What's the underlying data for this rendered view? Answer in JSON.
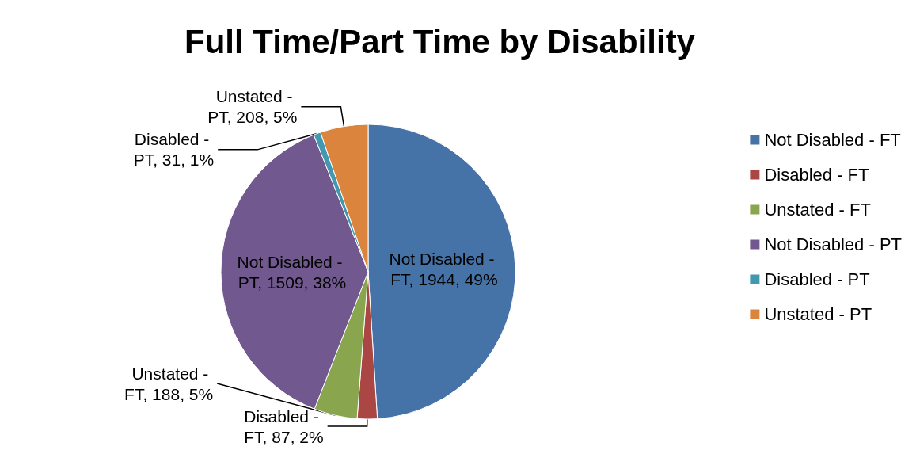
{
  "chart_data": {
    "type": "pie",
    "title": "Full Time/Part Time by Disability",
    "categories": [
      "Not Disabled - FT",
      "Disabled - FT",
      "Unstated - FT",
      "Not Disabled - PT",
      "Disabled - PT",
      "Unstated - PT"
    ],
    "values": [
      1944,
      87,
      188,
      1509,
      31,
      208
    ],
    "colors": [
      "#4572a7",
      "#aa4643",
      "#89a54e",
      "#71588f",
      "#4198af",
      "#db843d"
    ],
    "value_labels": [
      "Not Disabled - FT, 1944, 49%",
      "Disabled - FT, 87, 2%",
      "Unstated - FT, 188, 5%",
      "Not Disabled - PT, 1509, 38%",
      "Disabled - PT, 31, 1%",
      "Unstated - PT, 208, 5%"
    ],
    "legend": "right"
  }
}
